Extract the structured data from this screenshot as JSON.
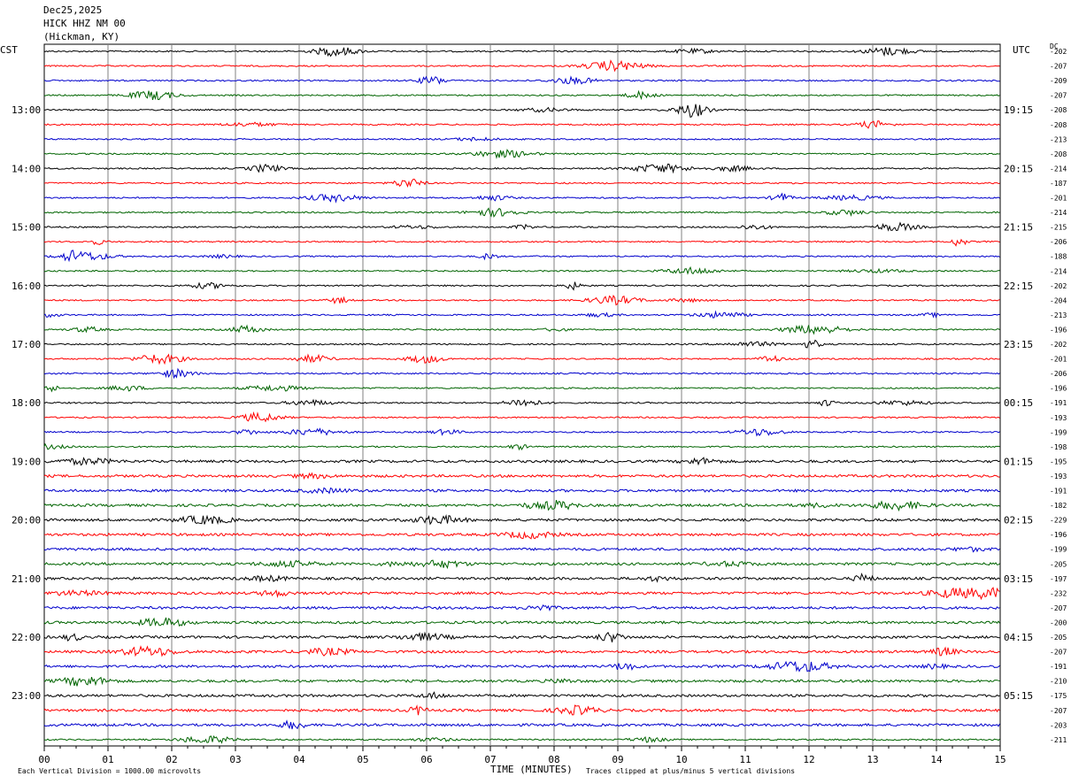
{
  "header": {
    "date": "Dec25,2025",
    "station": "HICK HHZ NM 00",
    "location": "(Hickman, KY)"
  },
  "left_tz": "CST",
  "right_tz": "UTC",
  "dc_header": "DC",
  "footer": {
    "left": "Each Vertical Division = 1000.00 microvolts",
    "center": "TIME (MINUTES)",
    "right": "Traces clipped at plus/minus 5 vertical divisions"
  },
  "colors": {
    "black": "#000000",
    "red": "#ff0000",
    "blue": "#0000cc",
    "green": "#006400",
    "grid": "#808080"
  },
  "chart_data": {
    "type": "line",
    "title": "HICK HHZ NM 00",
    "xlabel": "TIME (MINUTES)",
    "ylabel": "",
    "xlim": [
      0,
      15
    ],
    "x_ticks": [
      "00",
      "01",
      "02",
      "03",
      "04",
      "05",
      "06",
      "07",
      "08",
      "09",
      "10",
      "11",
      "12",
      "13",
      "14",
      "15"
    ],
    "trace_count": 48,
    "trace_colors_cycle": [
      "black",
      "red",
      "blue",
      "green"
    ],
    "left_hour_labels": [
      "13:00",
      "14:00",
      "15:00",
      "16:00",
      "17:00",
      "18:00",
      "19:00",
      "20:00",
      "21:00",
      "22:00",
      "23:00"
    ],
    "right_hour_labels": [
      "19:15",
      "20:15",
      "21:15",
      "22:15",
      "23:15",
      "00:15",
      "01:15",
      "02:15",
      "03:15",
      "04:15",
      "05:15"
    ],
    "hour_label_start_trace": 4,
    "traces_per_hour": 4,
    "dc_offsets": [
      -202,
      -207,
      -209,
      -207,
      -208,
      -208,
      -213,
      -208,
      -214,
      -187,
      -201,
      -214,
      -215,
      -206,
      -188,
      -214,
      -202,
      -204,
      -213,
      -196,
      -202,
      -201,
      -206,
      -196,
      -191,
      -193,
      -199,
      -198,
      -195,
      -193,
      -191,
      -182,
      -229,
      -196,
      -199,
      -205,
      -197,
      -232,
      -207,
      -200,
      -205,
      -207,
      -191,
      -210,
      -175,
      -207,
      -203,
      -211
    ],
    "vertical_division_microvolts": 1000.0,
    "clip_divisions": 5
  }
}
